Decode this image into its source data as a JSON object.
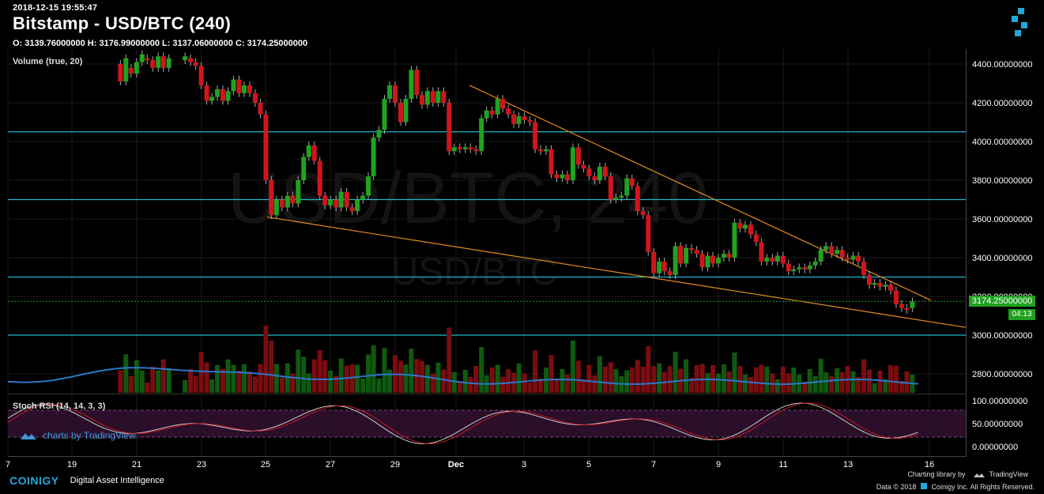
{
  "header": {
    "timestamp": "2018-12-15 19:55:47",
    "title": "Bitstamp - USD/BTC (240)",
    "ohlc": "O: 3139.76000000 H: 3176.99000000 L: 3137.06000000 C: 3174.25000000",
    "volume_label": "Volume (true, 20)",
    "stoch_label": "Stoch RSI (14, 14, 3, 3)",
    "watermark_big": "USD/BTC, 240",
    "watermark_small": "USD/BTC"
  },
  "price_tag": {
    "value": "3174.25000000",
    "countdown": "04:13"
  },
  "branding": {
    "tradingview": "charts by TradingView",
    "coinigy": "COINIGY",
    "tagline": "Digital Asset Intelligence",
    "charting_library": "Charting library by",
    "tv_name": "TradingView",
    "data_credit": "Data © 2018",
    "coinigy_credit": "Coinigy Inc. All Rights Reserved."
  },
  "colors": {
    "up": "#1fa31f",
    "down": "#d0161c",
    "horizontal_line": "#20b8c8",
    "trendline": "#e08a1e",
    "bg": "#000000"
  },
  "chart_data": {
    "type": "candlestick",
    "price_axis": {
      "ticks": [
        4400,
        4200,
        4000,
        3800,
        3600,
        3400,
        3200,
        3000,
        2800
      ],
      "tick_labels": [
        "4400.00000000",
        "4200.00000000",
        "4000.00000000",
        "3800.00000000",
        "3600.00000000",
        "3400.00000000",
        "3200.00000000",
        "3000.00000000",
        "2800.00000000"
      ],
      "range": [
        2700,
        4450
      ]
    },
    "stoch_axis": {
      "ticks": [
        100,
        50,
        0
      ],
      "tick_labels": [
        "100.00000000",
        "50.00000000",
        "0.00000000"
      ]
    },
    "x_axis": {
      "labels": [
        "7",
        "19",
        "21",
        "23",
        "25",
        "27",
        "29",
        "Dec",
        "3",
        "5",
        "7",
        "9",
        "11",
        "13",
        "16"
      ]
    },
    "horizontal_levels": [
      4050,
      3700,
      3300,
      3000
    ],
    "trendlines": [
      {
        "from": [
          "Nov 25",
          3610
        ],
        "to": [
          "Dec 16",
          3060
        ]
      },
      {
        "from": [
          "Dec 1",
          4290
        ],
        "to": [
          "Dec 16",
          3175
        ]
      }
    ],
    "candle_interval": "240",
    "candles": [
      {
        "day": 20.5,
        "o": 4400,
        "c": 4310
      },
      {
        "day": 20.67,
        "o": 4310,
        "c": 4430
      },
      {
        "day": 20.83,
        "o": 4380,
        "c": 4350
      },
      {
        "day": 21.0,
        "o": 4350,
        "c": 4410
      },
      {
        "day": 21.17,
        "o": 4410,
        "c": 4450
      },
      {
        "day": 21.33,
        "o": 4430,
        "c": 4420
      },
      {
        "day": 21.5,
        "o": 4420,
        "c": 4380
      },
      {
        "day": 21.67,
        "o": 4380,
        "c": 4440
      },
      {
        "day": 21.83,
        "o": 4440,
        "c": 4380
      },
      {
        "day": 22.0,
        "o": 4380,
        "c": 4430
      },
      {
        "day": 22.5,
        "o": 4420,
        "c": 4440
      },
      {
        "day": 22.67,
        "o": 4430,
        "c": 4410
      },
      {
        "day": 22.83,
        "o": 4410,
        "c": 4390
      },
      {
        "day": 23.0,
        "o": 4390,
        "c": 4290
      },
      {
        "day": 23.17,
        "o": 4290,
        "c": 4210
      },
      {
        "day": 23.33,
        "o": 4210,
        "c": 4230
      },
      {
        "day": 23.5,
        "o": 4230,
        "c": 4270
      },
      {
        "day": 23.67,
        "o": 4270,
        "c": 4210
      },
      {
        "day": 23.83,
        "o": 4210,
        "c": 4260
      },
      {
        "day": 24.0,
        "o": 4260,
        "c": 4320
      },
      {
        "day": 24.17,
        "o": 4320,
        "c": 4250
      },
      {
        "day": 24.33,
        "o": 4250,
        "c": 4290
      },
      {
        "day": 24.5,
        "o": 4290,
        "c": 4250
      },
      {
        "day": 24.67,
        "o": 4250,
        "c": 4200
      },
      {
        "day": 24.83,
        "o": 4200,
        "c": 4140
      },
      {
        "day": 25.0,
        "o": 4140,
        "c": 3800
      },
      {
        "day": 25.17,
        "o": 3800,
        "c": 3620
      },
      {
        "day": 25.33,
        "o": 3620,
        "c": 3700
      },
      {
        "day": 25.5,
        "o": 3700,
        "c": 3660
      },
      {
        "day": 25.67,
        "o": 3660,
        "c": 3720
      },
      {
        "day": 25.83,
        "o": 3720,
        "c": 3680
      },
      {
        "day": 26.0,
        "o": 3680,
        "c": 3800
      },
      {
        "day": 26.17,
        "o": 3800,
        "c": 3920
      },
      {
        "day": 26.33,
        "o": 3920,
        "c": 3980
      },
      {
        "day": 26.5,
        "o": 3980,
        "c": 3900
      },
      {
        "day": 26.67,
        "o": 3900,
        "c": 3720
      },
      {
        "day": 26.83,
        "o": 3720,
        "c": 3670
      },
      {
        "day": 27.0,
        "o": 3670,
        "c": 3700
      },
      {
        "day": 27.17,
        "o": 3700,
        "c": 3660
      },
      {
        "day": 27.33,
        "o": 3660,
        "c": 3740
      },
      {
        "day": 27.5,
        "o": 3740,
        "c": 3660
      },
      {
        "day": 27.67,
        "o": 3660,
        "c": 3640
      },
      {
        "day": 27.83,
        "o": 3640,
        "c": 3700
      },
      {
        "day": 28.0,
        "o": 3700,
        "c": 3720
      },
      {
        "day": 28.17,
        "o": 3720,
        "c": 3820
      },
      {
        "day": 28.33,
        "o": 3820,
        "c": 4020
      },
      {
        "day": 28.5,
        "o": 4020,
        "c": 4060
      },
      {
        "day": 28.67,
        "o": 4060,
        "c": 4220
      },
      {
        "day": 28.83,
        "o": 4220,
        "c": 4290
      },
      {
        "day": 29.0,
        "o": 4290,
        "c": 4200
      },
      {
        "day": 29.17,
        "o": 4200,
        "c": 4100
      },
      {
        "day": 29.33,
        "o": 4100,
        "c": 4220
      },
      {
        "day": 29.5,
        "o": 4220,
        "c": 4370
      },
      {
        "day": 29.67,
        "o": 4370,
        "c": 4240
      },
      {
        "day": 29.83,
        "o": 4240,
        "c": 4190
      },
      {
        "day": 30.0,
        "o": 4190,
        "c": 4260
      },
      {
        "day": 30.17,
        "o": 4260,
        "c": 4200
      },
      {
        "day": 30.33,
        "o": 4200,
        "c": 4260
      },
      {
        "day": 30.5,
        "o": 4260,
        "c": 4200
      },
      {
        "day": 30.67,
        "o": 4200,
        "c": 3950
      },
      {
        "day": 30.83,
        "o": 3950,
        "c": 3970
      },
      {
        "day": 31.0,
        "o": 3970,
        "c": 3960
      },
      {
        "day": 31.17,
        "o": 3960,
        "c": 3970
      },
      {
        "day": 31.33,
        "o": 3970,
        "c": 3960
      },
      {
        "day": 31.5,
        "o": 3960,
        "c": 3950
      },
      {
        "day": 31.67,
        "o": 3950,
        "c": 4120
      },
      {
        "day": 31.83,
        "o": 4120,
        "c": 4160
      },
      {
        "day": 32.0,
        "o": 4160,
        "c": 4140
      },
      {
        "day": 32.17,
        "o": 4140,
        "c": 4220
      },
      {
        "day": 32.33,
        "o": 4220,
        "c": 4170
      },
      {
        "day": 32.5,
        "o": 4170,
        "c": 4140
      },
      {
        "day": 32.67,
        "o": 4140,
        "c": 4090
      },
      {
        "day": 32.83,
        "o": 4090,
        "c": 4130
      },
      {
        "day": 33.0,
        "o": 4130,
        "c": 4110
      },
      {
        "day": 33.17,
        "o": 4110,
        "c": 4100
      },
      {
        "day": 33.33,
        "o": 4100,
        "c": 3960
      },
      {
        "day": 33.5,
        "o": 3960,
        "c": 3950
      },
      {
        "day": 33.67,
        "o": 3950,
        "c": 3960
      },
      {
        "day": 33.83,
        "o": 3960,
        "c": 3830
      },
      {
        "day": 34.0,
        "o": 3830,
        "c": 3810
      },
      {
        "day": 34.17,
        "o": 3810,
        "c": 3830
      },
      {
        "day": 34.33,
        "o": 3830,
        "c": 3800
      },
      {
        "day": 34.5,
        "o": 3800,
        "c": 3970
      },
      {
        "day": 34.67,
        "o": 3970,
        "c": 3880
      },
      {
        "day": 34.83,
        "o": 3880,
        "c": 3860
      },
      {
        "day": 35.0,
        "o": 3860,
        "c": 3820
      },
      {
        "day": 35.17,
        "o": 3820,
        "c": 3800
      },
      {
        "day": 35.33,
        "o": 3800,
        "c": 3870
      },
      {
        "day": 35.5,
        "o": 3870,
        "c": 3820
      },
      {
        "day": 35.67,
        "o": 3820,
        "c": 3700
      },
      {
        "day": 35.83,
        "o": 3700,
        "c": 3710
      },
      {
        "day": 36.0,
        "o": 3710,
        "c": 3720
      },
      {
        "day": 36.17,
        "o": 3720,
        "c": 3810
      },
      {
        "day": 36.33,
        "o": 3810,
        "c": 3770
      },
      {
        "day": 36.5,
        "o": 3770,
        "c": 3640
      },
      {
        "day": 36.67,
        "o": 3640,
        "c": 3620
      },
      {
        "day": 36.83,
        "o": 3620,
        "c": 3430
      },
      {
        "day": 37.0,
        "o": 3430,
        "c": 3320
      },
      {
        "day": 37.17,
        "o": 3320,
        "c": 3380
      },
      {
        "day": 37.33,
        "o": 3380,
        "c": 3330
      },
      {
        "day": 37.5,
        "o": 3330,
        "c": 3310
      },
      {
        "day": 37.67,
        "o": 3310,
        "c": 3460
      },
      {
        "day": 37.83,
        "o": 3460,
        "c": 3370
      },
      {
        "day": 38.0,
        "o": 3370,
        "c": 3450
      },
      {
        "day": 38.17,
        "o": 3450,
        "c": 3440
      },
      {
        "day": 38.33,
        "o": 3440,
        "c": 3420
      },
      {
        "day": 38.5,
        "o": 3420,
        "c": 3350
      },
      {
        "day": 38.67,
        "o": 3350,
        "c": 3410
      },
      {
        "day": 38.83,
        "o": 3410,
        "c": 3370
      },
      {
        "day": 39.0,
        "o": 3370,
        "c": 3400
      },
      {
        "day": 39.17,
        "o": 3400,
        "c": 3420
      },
      {
        "day": 39.33,
        "o": 3420,
        "c": 3400
      },
      {
        "day": 39.5,
        "o": 3400,
        "c": 3580
      },
      {
        "day": 39.67,
        "o": 3580,
        "c": 3550
      },
      {
        "day": 39.83,
        "o": 3550,
        "c": 3570
      },
      {
        "day": 40.0,
        "o": 3570,
        "c": 3520
      },
      {
        "day": 40.17,
        "o": 3520,
        "c": 3480
      },
      {
        "day": 40.33,
        "o": 3480,
        "c": 3380
      },
      {
        "day": 40.5,
        "o": 3380,
        "c": 3400
      },
      {
        "day": 40.67,
        "o": 3400,
        "c": 3380
      },
      {
        "day": 40.83,
        "o": 3380,
        "c": 3410
      },
      {
        "day": 41.0,
        "o": 3410,
        "c": 3370
      },
      {
        "day": 41.17,
        "o": 3370,
        "c": 3330
      },
      {
        "day": 41.33,
        "o": 3330,
        "c": 3340
      },
      {
        "day": 41.5,
        "o": 3340,
        "c": 3350
      },
      {
        "day": 41.67,
        "o": 3350,
        "c": 3340
      },
      {
        "day": 41.83,
        "o": 3340,
        "c": 3360
      },
      {
        "day": 42.0,
        "o": 3360,
        "c": 3380
      },
      {
        "day": 42.17,
        "o": 3380,
        "c": 3440
      },
      {
        "day": 42.33,
        "o": 3440,
        "c": 3460
      },
      {
        "day": 42.5,
        "o": 3460,
        "c": 3420
      },
      {
        "day": 42.67,
        "o": 3420,
        "c": 3440
      },
      {
        "day": 42.83,
        "o": 3440,
        "c": 3400
      },
      {
        "day": 43.0,
        "o": 3400,
        "c": 3390
      },
      {
        "day": 43.17,
        "o": 3390,
        "c": 3410
      },
      {
        "day": 43.33,
        "o": 3410,
        "c": 3380
      },
      {
        "day": 43.5,
        "o": 3380,
        "c": 3310
      },
      {
        "day": 43.67,
        "o": 3310,
        "c": 3260
      },
      {
        "day": 43.83,
        "o": 3260,
        "c": 3270
      },
      {
        "day": 44.0,
        "o": 3270,
        "c": 3250
      },
      {
        "day": 44.17,
        "o": 3250,
        "c": 3260
      },
      {
        "day": 44.33,
        "o": 3260,
        "c": 3230
      },
      {
        "day": 44.5,
        "o": 3230,
        "c": 3160
      },
      {
        "day": 44.67,
        "o": 3160,
        "c": 3140
      },
      {
        "day": 44.83,
        "o": 3140,
        "c": 3130
      },
      {
        "day": 45.0,
        "o": 3139.76,
        "c": 3174.25
      }
    ]
  }
}
